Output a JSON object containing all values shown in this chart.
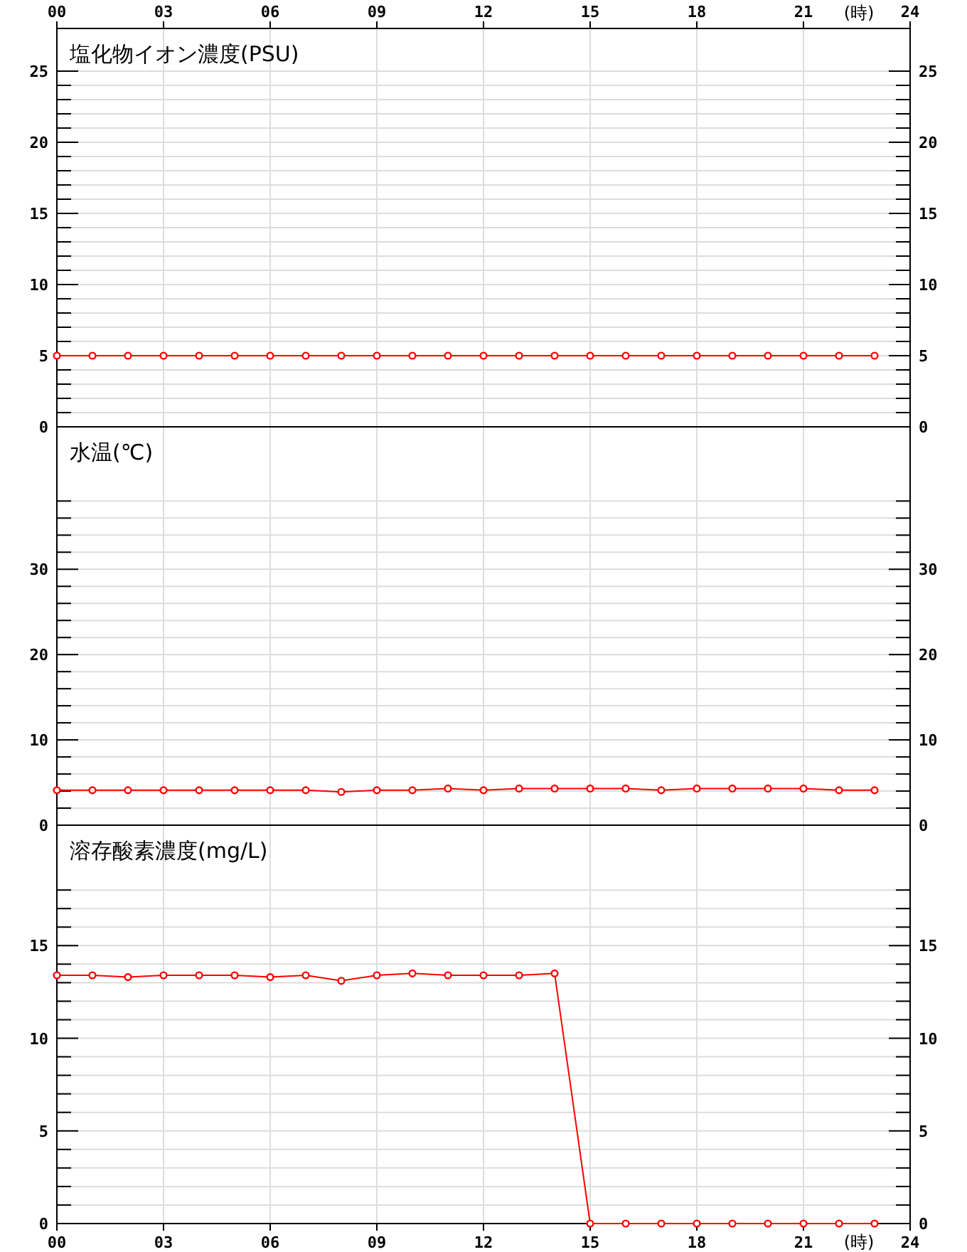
{
  "chart_data": [
    {
      "type": "line",
      "title": "塩化物イオン濃度(PSU)",
      "xlabel": "(時)",
      "x": [
        0,
        1,
        2,
        3,
        4,
        5,
        6,
        7,
        8,
        9,
        10,
        11,
        12,
        13,
        14,
        15,
        16,
        17,
        18,
        19,
        20,
        21,
        22,
        23
      ],
      "xlim": [
        0,
        24
      ],
      "xticks": [
        {
          "value": 0,
          "label": "00"
        },
        {
          "value": 3,
          "label": "03"
        },
        {
          "value": 6,
          "label": "06"
        },
        {
          "value": 9,
          "label": "09"
        },
        12,
        15,
        18,
        21,
        24
      ],
      "ylim": [
        0,
        28
      ],
      "yticks": [
        0,
        {
          "value": 1,
          "label": null
        },
        {
          "value": 2,
          "label": null
        },
        {
          "value": 3,
          "label": null
        },
        {
          "value": 4,
          "label": null
        },
        5,
        {
          "value": 6,
          "label": null
        },
        {
          "value": 7,
          "label": null
        },
        {
          "value": 8,
          "label": null
        },
        {
          "value": 9,
          "label": null
        },
        10,
        {
          "value": 11,
          "label": null
        },
        {
          "value": 12,
          "label": null
        },
        {
          "value": 13,
          "label": null
        },
        {
          "value": 14,
          "label": null
        },
        15,
        {
          "value": 16,
          "label": null
        },
        {
          "value": 17,
          "label": null
        },
        {
          "value": 18,
          "label": null
        },
        {
          "value": 19,
          "label": null
        },
        20,
        {
          "value": 21,
          "label": null
        },
        {
          "value": 22,
          "label": null
        },
        {
          "value": 23,
          "label": null
        },
        {
          "value": 24,
          "label": null
        },
        25
      ],
      "y2lim": [
        0,
        28
      ],
      "y2ticks": [
        0,
        {
          "value": 1,
          "label": null
        },
        {
          "value": 2,
          "label": null
        },
        {
          "value": 3,
          "label": null
        },
        {
          "value": 4,
          "label": null
        },
        5,
        {
          "value": 6,
          "label": null
        },
        {
          "value": 7,
          "label": null
        },
        {
          "value": 8,
          "label": null
        },
        {
          "value": 9,
          "label": null
        },
        10,
        {
          "value": 11,
          "label": null
        },
        {
          "value": 12,
          "label": null
        },
        {
          "value": 13,
          "label": null
        },
        {
          "value": 14,
          "label": null
        },
        15,
        {
          "value": 16,
          "label": null
        },
        {
          "value": 17,
          "label": null
        },
        {
          "value": 18,
          "label": null
        },
        {
          "value": 19,
          "label": null
        },
        20,
        {
          "value": 21,
          "label": null
        },
        {
          "value": 22,
          "label": null
        },
        {
          "value": 23,
          "label": null
        },
        {
          "value": 24,
          "label": null
        },
        25
      ],
      "grid": true,
      "marker": "circle",
      "line_style": "solid",
      "series": [
        {
          "color": "#ff0000",
          "values": [
            5,
            5,
            5,
            5,
            5,
            5,
            5,
            5,
            5,
            5,
            5,
            5,
            5,
            5,
            5,
            5,
            5,
            5,
            5,
            5,
            5,
            5,
            5,
            5
          ]
        }
      ]
    },
    {
      "type": "line",
      "title": "水温(℃)",
      "x": [
        0,
        1,
        2,
        3,
        4,
        5,
        6,
        7,
        8,
        9,
        10,
        11,
        12,
        13,
        14,
        15,
        16,
        17,
        18,
        19,
        20,
        21,
        22,
        23
      ],
      "xlim": [
        0,
        24
      ],
      "xticks": [
        {
          "value": 0,
          "label": null
        },
        {
          "value": 3,
          "label": null
        },
        {
          "value": 6,
          "label": null
        },
        {
          "value": 9,
          "label": null
        },
        {
          "value": 12,
          "label": null
        },
        {
          "value": 15,
          "label": null
        },
        {
          "value": 18,
          "label": null
        },
        {
          "value": 21,
          "label": null
        },
        {
          "value": 24,
          "label": null
        }
      ],
      "tick_labels": "y",
      "ylim": [
        0,
        46.7
      ],
      "yticks": [
        0,
        {
          "value": 2,
          "label": null
        },
        {
          "value": 4,
          "label": null
        },
        {
          "value": 6,
          "label": null
        },
        {
          "value": 8,
          "label": null
        },
        10,
        {
          "value": 12,
          "label": null
        },
        {
          "value": 14,
          "label": null
        },
        {
          "value": 16,
          "label": null
        },
        {
          "value": 18,
          "label": null
        },
        20,
        {
          "value": 22,
          "label": null
        },
        {
          "value": 24,
          "label": null
        },
        {
          "value": 26,
          "label": null
        },
        {
          "value": 28,
          "label": null
        },
        30,
        {
          "value": 32,
          "label": null
        },
        {
          "value": 34,
          "label": null
        },
        {
          "value": 36,
          "label": null
        },
        {
          "value": 38,
          "label": null
        }
      ],
      "y2lim": [
        0,
        46.7
      ],
      "y2ticks": [
        0,
        {
          "value": 2,
          "label": null
        },
        {
          "value": 4,
          "label": null
        },
        {
          "value": 6,
          "label": null
        },
        {
          "value": 8,
          "label": null
        },
        10,
        {
          "value": 12,
          "label": null
        },
        {
          "value": 14,
          "label": null
        },
        {
          "value": 16,
          "label": null
        },
        {
          "value": 18,
          "label": null
        },
        20,
        {
          "value": 22,
          "label": null
        },
        {
          "value": 24,
          "label": null
        },
        {
          "value": 26,
          "label": null
        },
        {
          "value": 28,
          "label": null
        },
        30,
        {
          "value": 32,
          "label": null
        },
        {
          "value": 34,
          "label": null
        },
        {
          "value": 36,
          "label": null
        },
        {
          "value": 38,
          "label": null
        }
      ],
      "grid": true,
      "marker": "circle",
      "line_style": "solid",
      "series": [
        {
          "color": "#ff0000",
          "values": [
            4.1,
            4.1,
            4.1,
            4.1,
            4.1,
            4.1,
            4.1,
            4.1,
            3.9,
            4.1,
            4.1,
            4.3,
            4.1,
            4.3,
            4.3,
            4.3,
            4.3,
            4.1,
            4.3,
            4.3,
            4.3,
            4.3,
            4.1,
            4.1
          ]
        }
      ]
    },
    {
      "type": "line",
      "title": "溶存酸素濃度(mg/L)",
      "xlabel": "(時)",
      "x": [
        0,
        1,
        2,
        3,
        4,
        5,
        6,
        7,
        8,
        9,
        10,
        11,
        12,
        13,
        14,
        15,
        16,
        17,
        18,
        19,
        20,
        21,
        22,
        23
      ],
      "xlim": [
        0,
        24
      ],
      "xticks": [
        {
          "value": 0,
          "label": "00"
        },
        {
          "value": 3,
          "label": "03"
        },
        {
          "value": 6,
          "label": "06"
        },
        {
          "value": 9,
          "label": "09"
        },
        12,
        15,
        18,
        21,
        24
      ],
      "ylim": [
        0,
        21.5
      ],
      "yticks": [
        0,
        {
          "value": 1,
          "label": null
        },
        {
          "value": 2,
          "label": null
        },
        {
          "value": 3,
          "label": null
        },
        {
          "value": 4,
          "label": null
        },
        5,
        {
          "value": 6,
          "label": null
        },
        {
          "value": 7,
          "label": null
        },
        {
          "value": 8,
          "label": null
        },
        {
          "value": 9,
          "label": null
        },
        10,
        {
          "value": 11,
          "label": null
        },
        {
          "value": 12,
          "label": null
        },
        {
          "value": 13,
          "label": null
        },
        {
          "value": 14,
          "label": null
        },
        15,
        {
          "value": 16,
          "label": null
        },
        {
          "value": 17,
          "label": null
        },
        {
          "value": 18,
          "label": null
        }
      ],
      "y2lim": [
        0,
        21.5
      ],
      "y2ticks": [
        0,
        {
          "value": 1,
          "label": null
        },
        {
          "value": 2,
          "label": null
        },
        {
          "value": 3,
          "label": null
        },
        {
          "value": 4,
          "label": null
        },
        5,
        {
          "value": 6,
          "label": null
        },
        {
          "value": 7,
          "label": null
        },
        {
          "value": 8,
          "label": null
        },
        {
          "value": 9,
          "label": null
        },
        10,
        {
          "value": 11,
          "label": null
        },
        {
          "value": 12,
          "label": null
        },
        {
          "value": 13,
          "label": null
        },
        {
          "value": 14,
          "label": null
        },
        15,
        {
          "value": 16,
          "label": null
        },
        {
          "value": 17,
          "label": null
        },
        {
          "value": 18,
          "label": null
        }
      ],
      "grid": true,
      "marker": "circle",
      "line_style": "solid",
      "series": [
        {
          "color": "#ff0000",
          "values": [
            13.4,
            13.4,
            13.3,
            13.4,
            13.4,
            13.4,
            13.3,
            13.4,
            13.1,
            13.4,
            13.5,
            13.4,
            13.4,
            13.4,
            13.5,
            0,
            0,
            0,
            0,
            0,
            0,
            0,
            0,
            0
          ]
        }
      ]
    }
  ]
}
